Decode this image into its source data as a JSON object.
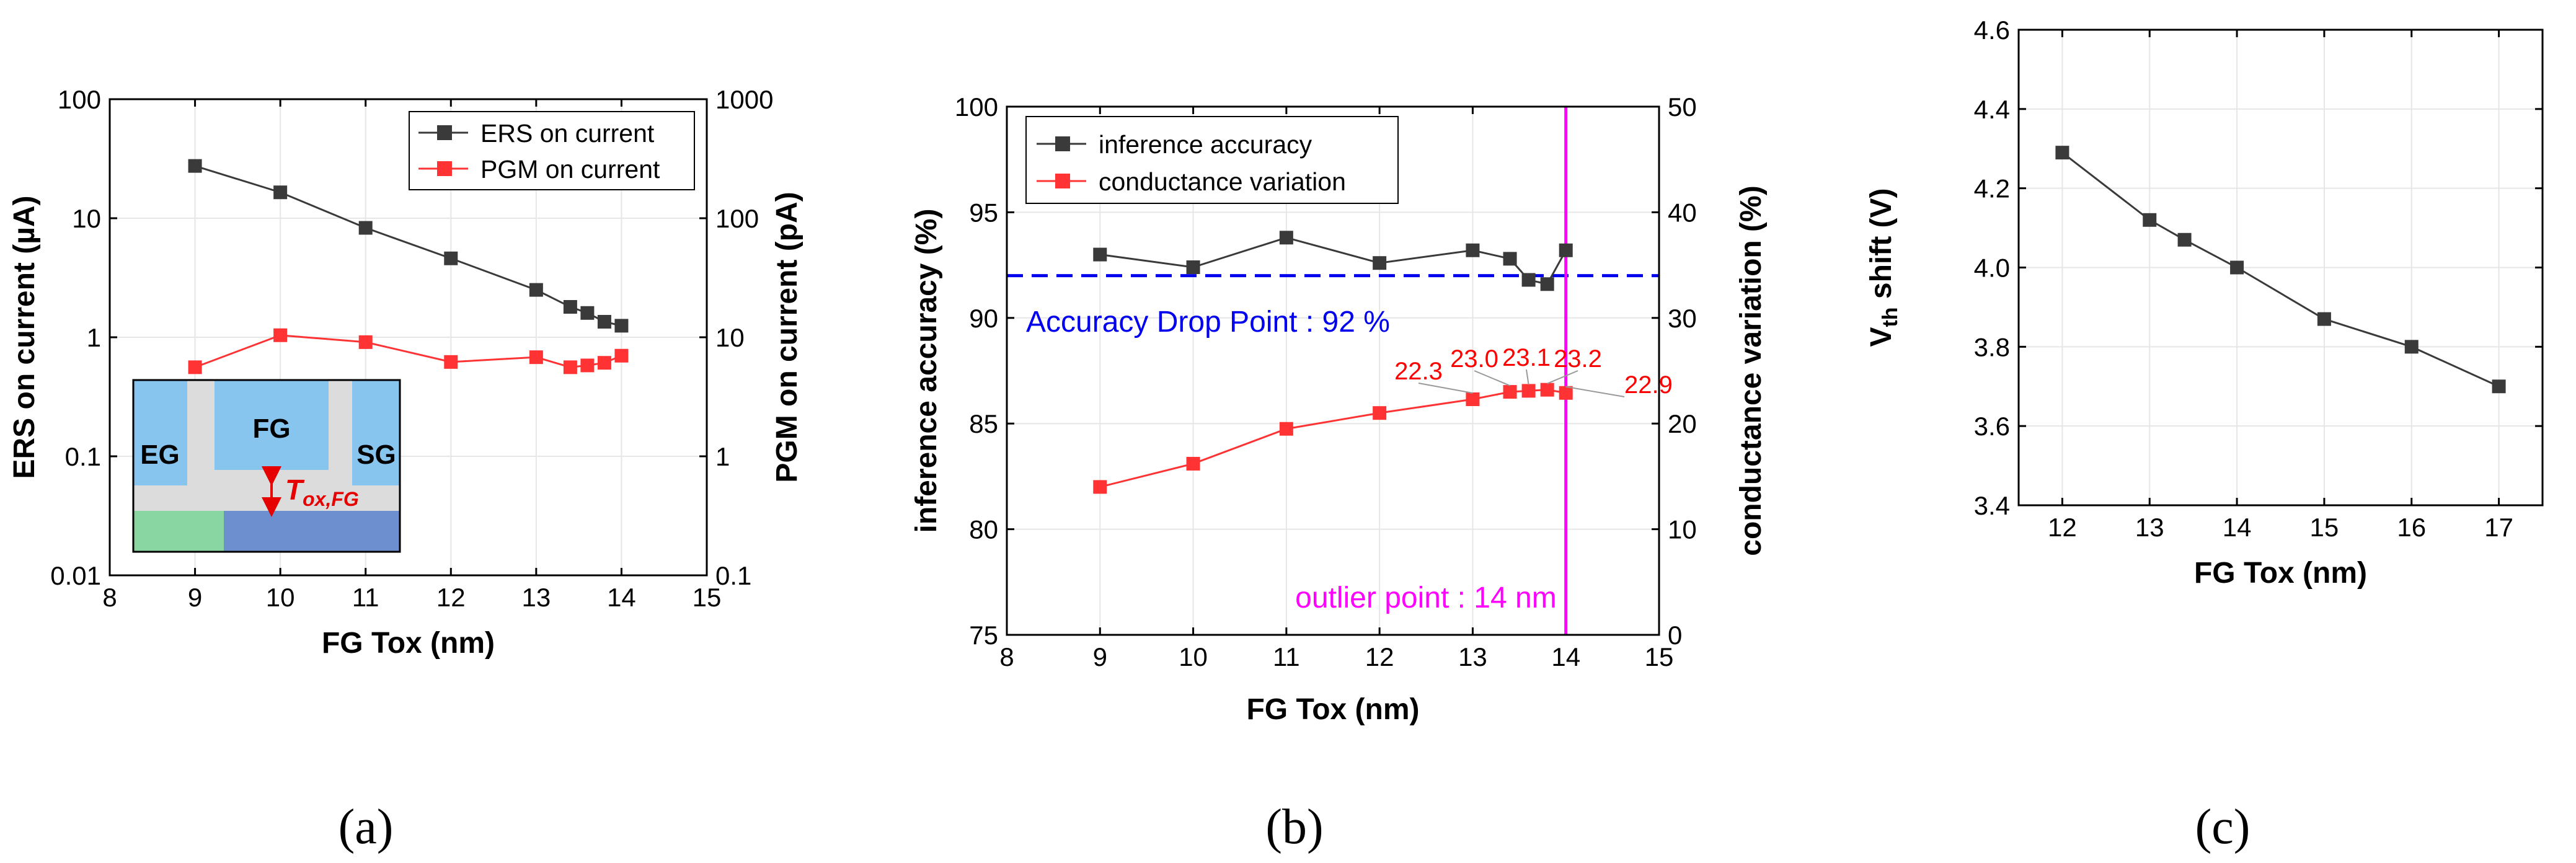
{
  "chart_data": [
    {
      "panel": "a",
      "caption": "(a)",
      "type": "line",
      "xlabel": "FG Tox (nm)",
      "ylabel_left": "ERS on current (µA)",
      "ylabel_right": "PGM on current (pA)",
      "xlim": [
        8,
        15
      ],
      "xticks": [
        "8",
        "9",
        "10",
        "11",
        "12",
        "13",
        "14",
        "15"
      ],
      "ylim_left": [
        0.01,
        100
      ],
      "yscale": "log",
      "yticks_left": [
        "0.01",
        "0.1",
        "1",
        "10",
        "100"
      ],
      "ylim_right": [
        0.1,
        1000
      ],
      "yticks_right": [
        "0.1",
        "1",
        "10",
        "100",
        "1000"
      ],
      "series": [
        {
          "name": "ERS on current",
          "axis": "left",
          "color": "#3a3a3a",
          "x": [
            9,
            10,
            11,
            12,
            13,
            13.4,
            13.6,
            13.8,
            14
          ],
          "y": [
            27.5,
            16.5,
            8.3,
            4.6,
            2.5,
            1.8,
            1.6,
            1.35,
            1.25
          ]
        },
        {
          "name": "PGM on current",
          "axis": "right",
          "color": "#ff3333",
          "x": [
            9,
            10,
            11,
            12,
            13,
            13.4,
            13.6,
            13.8,
            14
          ],
          "y": [
            5.6,
            10.4,
            9.1,
            6.2,
            6.8,
            5.6,
            5.8,
            6.1,
            7.0
          ]
        }
      ],
      "inset": {
        "labels": {
          "eg": "EG",
          "fg": "FG",
          "sg": "SG",
          "tox_main": "T",
          "tox_sub": "ox,FG"
        },
        "colors": {
          "gate": "#87c4ee",
          "oxide": "#dcdcdc",
          "green": "#8ad6a2",
          "blue": "#6e8fcf",
          "arrow": "#e60000"
        }
      }
    },
    {
      "panel": "b",
      "caption": "(b)",
      "type": "line",
      "xlabel": "FG Tox (nm)",
      "ylabel_left": "inference accuracy (%)",
      "ylabel_right": "conductance variation (%)",
      "xlim": [
        8,
        15
      ],
      "xticks": [
        "8",
        "9",
        "10",
        "11",
        "12",
        "13",
        "14",
        "15"
      ],
      "ylim_left": [
        75,
        100
      ],
      "yticks_left": [
        "75",
        "80",
        "85",
        "90",
        "95",
        "100"
      ],
      "ylim_right": [
        0,
        50
      ],
      "yticks_right": [
        "0",
        "10",
        "20",
        "30",
        "40",
        "50"
      ],
      "series": [
        {
          "name": "inference accuracy",
          "axis": "left",
          "color": "#3a3a3a",
          "x": [
            9,
            10,
            11,
            12,
            13,
            13.4,
            13.6,
            13.8,
            14
          ],
          "y": [
            93.0,
            92.4,
            93.8,
            92.6,
            93.2,
            92.8,
            91.8,
            91.6,
            93.2
          ]
        },
        {
          "name": "conductance variation",
          "axis": "right",
          "color": "#ff3333",
          "x": [
            9,
            10,
            11,
            12,
            13,
            13.4,
            13.6,
            13.8,
            14
          ],
          "y": [
            14.0,
            16.2,
            19.5,
            21.0,
            22.3,
            23.0,
            23.1,
            23.2,
            22.9
          ]
        }
      ],
      "data_labels": [
        "22.3",
        "23.0",
        "23.1",
        "23.2",
        "22.9"
      ],
      "reference_line": {
        "value": 92,
        "label": "Accuracy Drop Point : 92 %",
        "color": "#0000ee"
      },
      "vertical_line": {
        "value": 14,
        "label": "outlier point : 14 nm",
        "color": "#ff00ff"
      }
    },
    {
      "panel": "c",
      "caption": "(c)",
      "type": "line",
      "xlabel": "FG Tox (nm)",
      "ylabel_main": "V",
      "ylabel_sub": "th",
      "ylabel_rest": " shift (V)",
      "xlim": [
        11.5,
        17.5
      ],
      "xticks": [
        "12",
        "13",
        "14",
        "15",
        "16",
        "17"
      ],
      "ylim": [
        3.4,
        4.6
      ],
      "yticks": [
        "3.4",
        "3.6",
        "3.8",
        "4.0",
        "4.2",
        "4.4",
        "4.6"
      ],
      "series": [
        {
          "name": "Vth shift",
          "color": "#3a3a3a",
          "x": [
            12,
            13,
            13.4,
            14,
            15,
            16,
            17
          ],
          "y": [
            4.29,
            4.12,
            4.07,
            4.0,
            3.87,
            3.8,
            3.7
          ]
        }
      ]
    }
  ]
}
